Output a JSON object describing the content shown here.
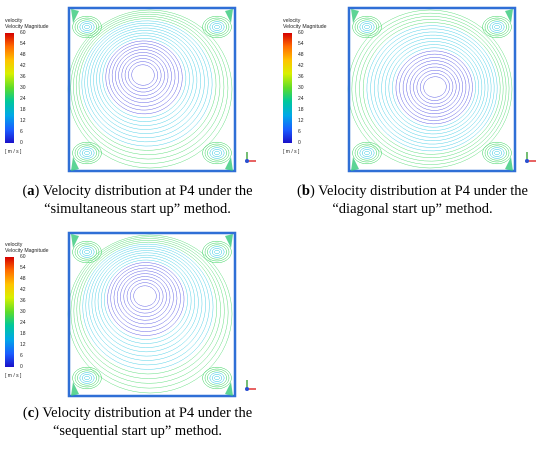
{
  "legend": {
    "title_line1": "velocity",
    "title_line2": "Velocity Magnitude",
    "ticks": [
      "60",
      "54",
      "48",
      "42",
      "36",
      "30",
      "24",
      "18",
      "12",
      "6",
      "0"
    ],
    "unit": "[ m / s ]"
  },
  "panels": [
    {
      "letter": "a",
      "caption_rest_line1": ") Velocity distribution at P4 under the",
      "caption_line2": "“simultaneous start up” method."
    },
    {
      "letter": "b",
      "caption_rest_line1": ") Velocity distribution at P4 under the",
      "caption_line2": "“diagonal start up” method."
    },
    {
      "letter": "c",
      "caption_rest_line1": ") Velocity distribution at P4 under the",
      "caption_line2": "“sequential start up” method."
    }
  ],
  "colors": {
    "frame": "#2f6fd6",
    "streamline_low": "#3a3adf",
    "streamline_mid": "#25c4e0",
    "streamline_high": "#34d35a"
  }
}
